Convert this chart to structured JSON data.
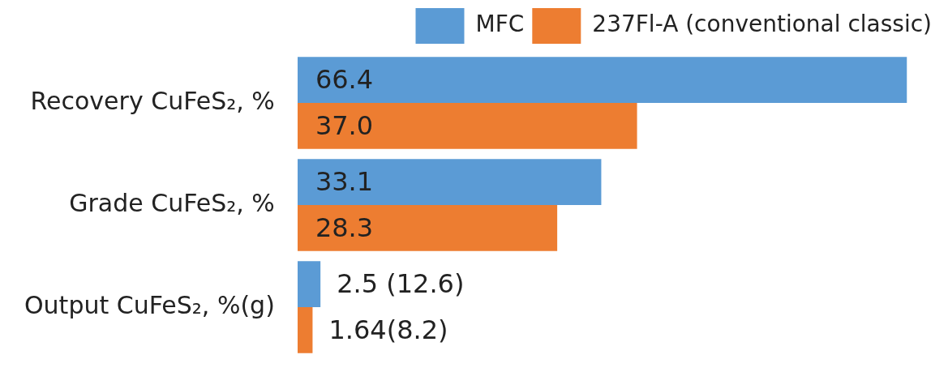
{
  "chart_data": {
    "type": "bar",
    "orientation": "horizontal",
    "categories": [
      "Recovery CuFeS₂, %",
      "Grade CuFeS₂, %",
      "Output CuFeS₂, %(g)"
    ],
    "series": [
      {
        "name": "MFC",
        "color": "#5b9bd5",
        "values": [
          66.4,
          33.1,
          2.5
        ],
        "value_labels": [
          "66.4",
          "33.1",
          "2.5 (12.6)"
        ]
      },
      {
        "name": "237Fl-A (conventional classic)",
        "color": "#ed7d31",
        "values": [
          37.0,
          28.3,
          1.64
        ],
        "value_labels": [
          "37.0",
          "28.3",
          "1.64(8.2)"
        ]
      }
    ],
    "legend": "top right",
    "grid": false
  }
}
